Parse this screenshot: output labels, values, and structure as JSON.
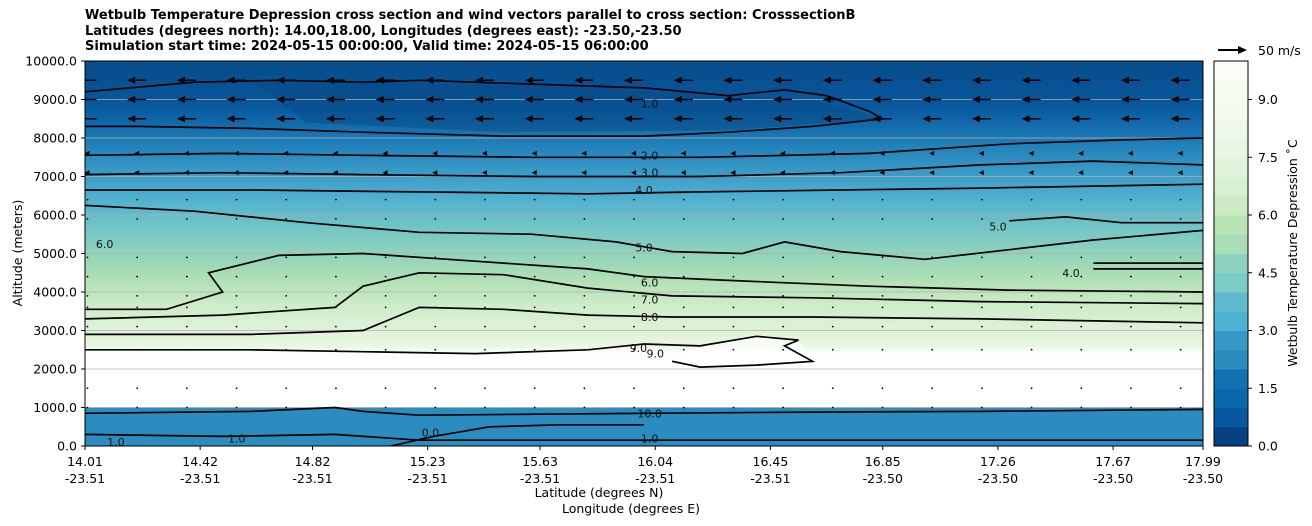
{
  "chart_data": {
    "type": "contour",
    "title_lines": [
      "Wetbulb Temperature Depression cross section and wind vectors parallel to cross section: CrosssectionB",
      "Latitudes (degrees north): 14.00,18.00, Longitudes (degrees east): -23.50,-23.50",
      "Simulation start time: 2024-05-15 00:00:00, Valid time: 2024-05-15 06:00:00"
    ],
    "ylabel": "Altitude (meters)",
    "xlabel_lat": "Latitude (degrees N)",
    "xlabel_lon": "Longitude (degrees E)",
    "ylim": [
      0,
      10000
    ],
    "y_ticks": [
      "0.0",
      "1000.0",
      "2000.0",
      "3000.0",
      "4000.0",
      "5000.0",
      "6000.0",
      "7000.0",
      "8000.0",
      "9000.0",
      "10000.0"
    ],
    "x_tick_values": [
      14.01,
      14.42,
      14.82,
      15.23,
      15.63,
      16.04,
      16.45,
      16.85,
      17.26,
      17.67,
      17.99
    ],
    "x_tick_lat": [
      "14.01",
      "14.42",
      "14.82",
      "15.23",
      "15.63",
      "16.04",
      "16.45",
      "16.85",
      "17.26",
      "17.67",
      "17.99"
    ],
    "x_tick_lon": [
      "-23.51",
      "-23.51",
      "-23.51",
      "-23.51",
      "-23.51",
      "-23.51",
      "-23.51",
      "-23.50",
      "-23.50",
      "-23.50",
      "-23.50"
    ],
    "xlim": [
      14.01,
      17.99
    ],
    "grid": "horizontal",
    "colorbar": {
      "label": "Wetbulb Temperature Depression ˚C",
      "range": [
        0,
        10
      ],
      "ticks": [
        "0.0",
        "1.5",
        "3.0",
        "4.5",
        "6.0",
        "7.5",
        "9.0"
      ],
      "colormap": "GnBu (reversed)"
    },
    "quiver_key": {
      "label": "50 m/s"
    },
    "contour_labels": [
      {
        "text": "1.0",
        "x": 16.02,
        "y": 8900
      },
      {
        "text": "2.0",
        "x": 16.02,
        "y": 7550
      },
      {
        "text": "3.0",
        "x": 16.02,
        "y": 7100
      },
      {
        "text": "4.0",
        "x": 16.0,
        "y": 6650
      },
      {
        "text": "5.0",
        "x": 16.0,
        "y": 5150
      },
      {
        "text": "6.0",
        "x": 16.02,
        "y": 4250
      },
      {
        "text": "7.0",
        "x": 16.02,
        "y": 3800
      },
      {
        "text": "8.0",
        "x": 16.02,
        "y": 3350
      },
      {
        "text": "9.0",
        "x": 15.98,
        "y": 2550
      },
      {
        "text": "9.0",
        "x": 16.04,
        "y": 2400
      },
      {
        "text": "6.0",
        "x": 14.08,
        "y": 5250
      },
      {
        "text": "5.0",
        "x": 17.26,
        "y": 5700
      },
      {
        "text": "4.0",
        "x": 17.52,
        "y": 4500
      },
      {
        "text": "10.0",
        "x": 16.02,
        "y": 850
      },
      {
        "text": "1.0",
        "x": 16.02,
        "y": 200
      },
      {
        "text": "0.0",
        "x": 15.24,
        "y": 350
      },
      {
        "text": "1.0",
        "x": 14.12,
        "y": 100
      },
      {
        "text": "1.0",
        "x": 14.55,
        "y": 200
      }
    ],
    "contour_lines": [
      {
        "level": 1.0,
        "points": [
          [
            14.01,
            9200
          ],
          [
            14.4,
            9450
          ],
          [
            14.7,
            9500
          ],
          [
            15.0,
            9450
          ],
          [
            15.2,
            9500
          ],
          [
            15.6,
            9400
          ],
          [
            16.0,
            9300
          ],
          [
            16.3,
            9100
          ],
          [
            16.5,
            9250
          ],
          [
            16.65,
            9100
          ],
          [
            16.8,
            8700
          ],
          [
            16.85,
            8500
          ],
          [
            16.6,
            8300
          ],
          [
            16.3,
            8150
          ],
          [
            16.0,
            8050
          ],
          [
            15.5,
            8050
          ],
          [
            15.0,
            8150
          ],
          [
            14.6,
            8250
          ],
          [
            14.2,
            8300
          ],
          [
            14.01,
            8300
          ]
        ]
      },
      {
        "level": 2.0,
        "points": [
          [
            14.01,
            7550
          ],
          [
            14.5,
            7600
          ],
          [
            15.0,
            7550
          ],
          [
            15.6,
            7500
          ],
          [
            16.2,
            7500
          ],
          [
            16.8,
            7600
          ],
          [
            17.3,
            7850
          ],
          [
            17.7,
            7950
          ],
          [
            17.99,
            8000
          ]
        ]
      },
      {
        "level": 3.0,
        "points": [
          [
            14.01,
            7050
          ],
          [
            14.5,
            7100
          ],
          [
            15.0,
            7050
          ],
          [
            15.6,
            7000
          ],
          [
            16.2,
            7000
          ],
          [
            16.7,
            7100
          ],
          [
            17.2,
            7300
          ],
          [
            17.6,
            7400
          ],
          [
            17.99,
            7300
          ]
        ]
      },
      {
        "level": 4.0,
        "points": [
          [
            14.01,
            6650
          ],
          [
            14.6,
            6650
          ],
          [
            15.2,
            6600
          ],
          [
            15.8,
            6550
          ],
          [
            16.2,
            6600
          ],
          [
            16.7,
            6650
          ],
          [
            17.2,
            6700
          ],
          [
            17.6,
            6750
          ],
          [
            17.99,
            6800
          ]
        ]
      },
      {
        "level": 5.0,
        "points": [
          [
            14.01,
            6250
          ],
          [
            14.4,
            6100
          ],
          [
            14.8,
            5800
          ],
          [
            15.2,
            5550
          ],
          [
            15.6,
            5500
          ],
          [
            15.9,
            5300
          ],
          [
            16.1,
            5050
          ],
          [
            16.35,
            5000
          ],
          [
            16.5,
            5300
          ],
          [
            16.7,
            5050
          ],
          [
            17.0,
            4850
          ],
          [
            17.3,
            5100
          ],
          [
            17.6,
            5350
          ],
          [
            17.99,
            5600
          ]
        ]
      },
      {
        "level": 5.0,
        "points": [
          [
            17.3,
            5850
          ],
          [
            17.5,
            5950
          ],
          [
            17.7,
            5800
          ],
          [
            17.99,
            5800
          ]
        ]
      },
      {
        "level": 4.0,
        "points": [
          [
            17.6,
            4750
          ],
          [
            17.99,
            4750
          ]
        ]
      },
      {
        "level": 4.0,
        "points": [
          [
            17.6,
            4600
          ],
          [
            17.99,
            4600
          ]
        ]
      },
      {
        "level": 6.0,
        "points": [
          [
            14.01,
            3550
          ],
          [
            14.3,
            3550
          ],
          [
            14.5,
            4000
          ],
          [
            14.45,
            4500
          ],
          [
            14.7,
            4950
          ],
          [
            15.0,
            5000
          ],
          [
            15.4,
            4800
          ],
          [
            15.8,
            4600
          ],
          [
            16.0,
            4400
          ],
          [
            16.3,
            4300
          ],
          [
            16.8,
            4150
          ],
          [
            17.3,
            4050
          ],
          [
            17.99,
            4000
          ]
        ]
      },
      {
        "level": 7.0,
        "points": [
          [
            14.01,
            3300
          ],
          [
            14.5,
            3400
          ],
          [
            14.9,
            3600
          ],
          [
            15.0,
            4150
          ],
          [
            15.2,
            4500
          ],
          [
            15.5,
            4450
          ],
          [
            15.8,
            4100
          ],
          [
            16.1,
            3900
          ],
          [
            16.6,
            3850
          ],
          [
            17.2,
            3750
          ],
          [
            17.99,
            3700
          ]
        ]
      },
      {
        "level": 8.0,
        "points": [
          [
            14.01,
            2900
          ],
          [
            14.6,
            2900
          ],
          [
            15.0,
            3000
          ],
          [
            15.2,
            3600
          ],
          [
            15.5,
            3550
          ],
          [
            15.8,
            3400
          ],
          [
            16.1,
            3350
          ],
          [
            16.6,
            3350
          ],
          [
            17.2,
            3300
          ],
          [
            17.99,
            3200
          ]
        ]
      },
      {
        "level": 9.0,
        "points": [
          [
            14.01,
            2500
          ],
          [
            14.6,
            2500
          ],
          [
            15.0,
            2450
          ],
          [
            15.4,
            2400
          ],
          [
            15.8,
            2500
          ],
          [
            16.0,
            2650
          ],
          [
            16.2,
            2600
          ],
          [
            16.4,
            2850
          ],
          [
            16.55,
            2750
          ],
          [
            16.5,
            2600
          ],
          [
            16.6,
            2200
          ],
          [
            16.4,
            2100
          ],
          [
            16.2,
            2050
          ],
          [
            16.1,
            2200
          ]
        ]
      },
      {
        "level": 10.0,
        "points": [
          [
            14.01,
            850
          ],
          [
            14.6,
            900
          ],
          [
            14.9,
            1000
          ],
          [
            15.0,
            900
          ],
          [
            15.2,
            800
          ],
          [
            16.0,
            850
          ],
          [
            16.6,
            880
          ],
          [
            17.2,
            900
          ],
          [
            17.99,
            950
          ]
        ]
      },
      {
        "level": 1.0,
        "points": [
          [
            14.01,
            300
          ],
          [
            14.5,
            250
          ],
          [
            14.9,
            300
          ],
          [
            15.2,
            150
          ],
          [
            16.0,
            150
          ],
          [
            16.8,
            150
          ],
          [
            17.5,
            150
          ],
          [
            17.99,
            150
          ]
        ]
      },
      {
        "level": 0.0,
        "points": [
          [
            15.1,
            0
          ],
          [
            15.25,
            250
          ],
          [
            15.45,
            500
          ],
          [
            15.7,
            550
          ],
          [
            16.0,
            550
          ]
        ]
      }
    ],
    "wind_rows": [
      {
        "y": 9500,
        "type": "arrow"
      },
      {
        "y": 9000,
        "type": "arrow"
      },
      {
        "y": 8500,
        "type": "arrow"
      },
      {
        "y": 7600,
        "type": "dash"
      },
      {
        "y": 7100,
        "type": "dash"
      },
      {
        "y": 6400,
        "type": "dot"
      },
      {
        "y": 5900,
        "type": "dot"
      },
      {
        "y": 4900,
        "type": "dot"
      },
      {
        "y": 4400,
        "type": "dot"
      },
      {
        "y": 3900,
        "type": "dot"
      },
      {
        "y": 3600,
        "type": "dot"
      },
      {
        "y": 3100,
        "type": "dot"
      },
      {
        "y": 2500,
        "type": "dot"
      },
      {
        "y": 1500,
        "type": "dot"
      },
      {
        "y": 1000,
        "type": "dot"
      }
    ]
  }
}
